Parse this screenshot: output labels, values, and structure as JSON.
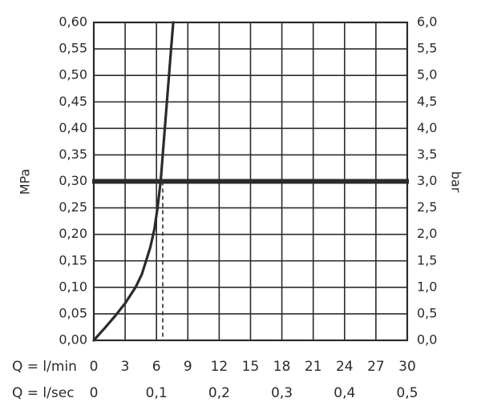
{
  "chart_data": {
    "type": "line",
    "title": "",
    "ylabel_left": "MPa",
    "ylabel_right": "bar",
    "ylim": [
      0,
      0.6
    ],
    "y_ticks_left": [
      "0,00",
      "0,05",
      "0,10",
      "0,15",
      "0,20",
      "0,25",
      "0,30",
      "0,35",
      "0,40",
      "0,45",
      "0,50",
      "0,55",
      "0,60"
    ],
    "y_ticks_right": [
      "0,0",
      "0,5",
      "1,0",
      "1,5",
      "2,0",
      "2,5",
      "3,0",
      "3,5",
      "4,0",
      "4,5",
      "5,0",
      "5,5",
      "6,0"
    ],
    "xlim": [
      0,
      30
    ],
    "x_axis_primary": {
      "label": "Q = l/min",
      "ticks": [
        "0",
        "3",
        "6",
        "9",
        "12",
        "15",
        "18",
        "21",
        "24",
        "27",
        "30"
      ]
    },
    "x_axis_secondary": {
      "label": "Q = l/sec",
      "ticks": [
        "0",
        "0,1",
        "0,2",
        "0,3",
        "0,4",
        "0,5"
      ]
    },
    "grid": true,
    "series": [
      {
        "x": [
          0,
          1,
          2,
          3,
          4,
          4.6,
          5,
          5.4,
          5.8,
          6.1,
          6.4,
          6.6,
          6.8,
          7.0,
          7.2,
          7.4,
          7.6
        ],
        "y": [
          0,
          0.022,
          0.045,
          0.07,
          0.1,
          0.125,
          0.15,
          0.175,
          0.21,
          0.25,
          0.3,
          0.35,
          0.4,
          0.45,
          0.5,
          0.55,
          0.6
        ]
      }
    ],
    "reference_line": {
      "y": 0.3
    },
    "reference_marker": {
      "x": 6.6
    }
  }
}
